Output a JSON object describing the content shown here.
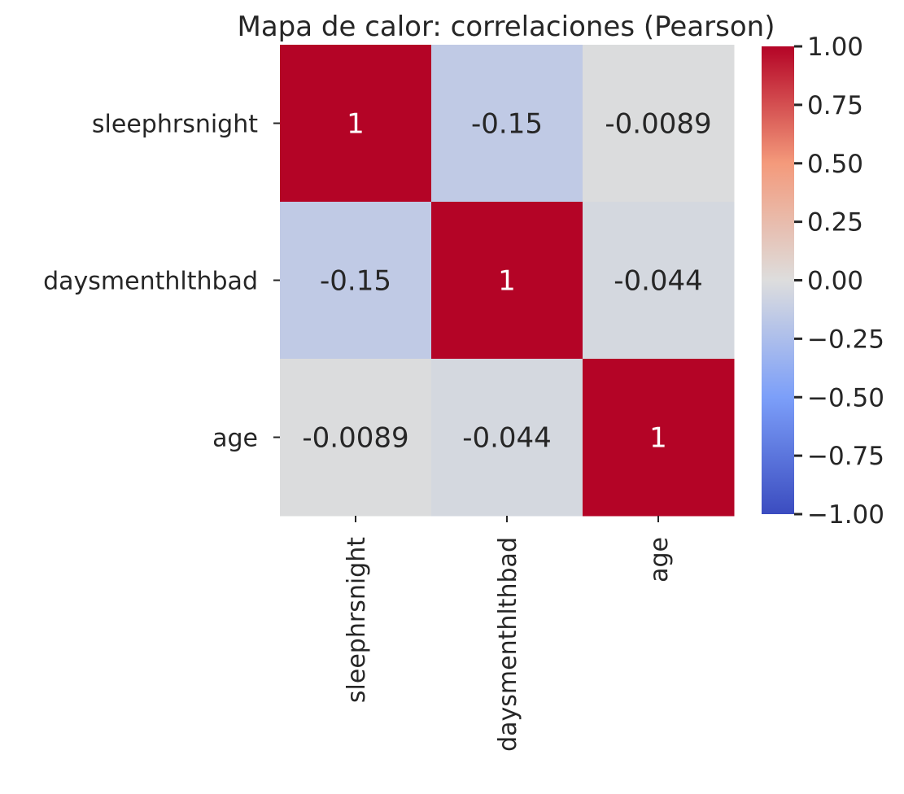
{
  "chart_data": {
    "type": "heatmap",
    "title": "Mapa de calor: correlaciones (Pearson)",
    "row_labels": [
      "sleephrsnight",
      "daysmenthlthbad",
      "age"
    ],
    "col_labels": [
      "sleephrsnight",
      "daysmenthlthbad",
      "age"
    ],
    "values": [
      [
        1,
        -0.15,
        -0.0089
      ],
      [
        -0.15,
        1,
        -0.044
      ],
      [
        -0.0089,
        -0.044,
        1
      ]
    ],
    "annotations": [
      [
        "1",
        "-0.15",
        "-0.0089"
      ],
      [
        "-0.15",
        "1",
        "-0.044"
      ],
      [
        "-0.0089",
        "-0.044",
        "1"
      ]
    ],
    "colormap": "coolwarm",
    "vmin": -1,
    "vmax": 1,
    "colorbar_ticks": [
      {
        "value": 1,
        "label": "1.00"
      },
      {
        "value": 0.75,
        "label": "0.75"
      },
      {
        "value": 0.5,
        "label": "0.50"
      },
      {
        "value": 0.25,
        "label": "0.25"
      },
      {
        "value": 0,
        "label": "0.00"
      },
      {
        "value": -0.25,
        "label": "−0.25"
      },
      {
        "value": -0.5,
        "label": "−0.50"
      },
      {
        "value": -0.75,
        "label": "−0.75"
      },
      {
        "value": -1,
        "label": "−1.00"
      }
    ],
    "grid": false
  }
}
